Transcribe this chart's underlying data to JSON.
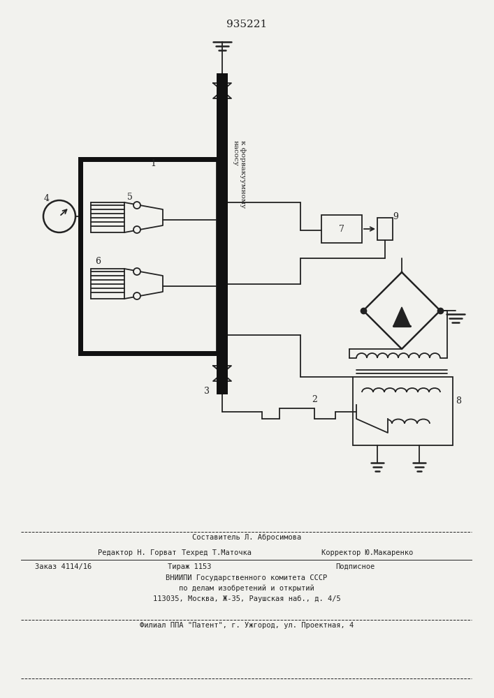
{
  "title": "935221",
  "title_fontsize": 11,
  "bg_color": "#f2f2ee",
  "line_color": "#222222",
  "thick_color": "#111111",
  "rotated_text": "к форвакуумному\nнасосу",
  "footer_lines": [
    "Составитель Л. Абросимова",
    "Редактор Н. Горват",
    "Техред Т.Маточка",
    "Корректор Ю.Макаренко",
    "Заказ 4114/16",
    "Тираж 1153",
    "Подписное",
    "ВНИИПИ Государственного комитета СССР",
    "по делам изобретений и открытий",
    "113035, Москва, Ж-35, Раушская наб., д. 4/5",
    "Филиал ППА \"Патент\", г. Ужгород, ул. Проектная, 4"
  ]
}
